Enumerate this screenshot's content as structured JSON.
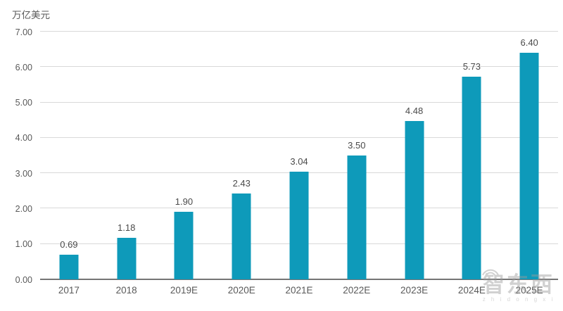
{
  "chart_data": {
    "type": "bar",
    "title": "",
    "unit_label": "万亿美元",
    "categories": [
      "2017",
      "2018",
      "2019E",
      "2020E",
      "2021E",
      "2022E",
      "2023E",
      "2024E",
      "2025E"
    ],
    "values": [
      0.69,
      1.18,
      1.9,
      2.43,
      3.04,
      3.5,
      4.48,
      5.73,
      6.4
    ],
    "value_labels": [
      "0.69",
      "1.18",
      "1.90",
      "2.43",
      "3.04",
      "3.50",
      "4.48",
      "5.73",
      "6.40"
    ],
    "ylim": [
      0,
      7
    ],
    "ytick_step": 1,
    "ytick_labels": [
      "0.00",
      "1.00",
      "2.00",
      "3.00",
      "4.00",
      "5.00",
      "6.00",
      "7.00"
    ],
    "grid": true,
    "legend": "none",
    "bar_color": "#0e9aba",
    "gridline_color": "#d9d9d9",
    "axis_line_color": "#757575",
    "text_color": "#595959"
  },
  "watermark": {
    "text": "智东西",
    "subtext": "z h i d o n g x i"
  }
}
